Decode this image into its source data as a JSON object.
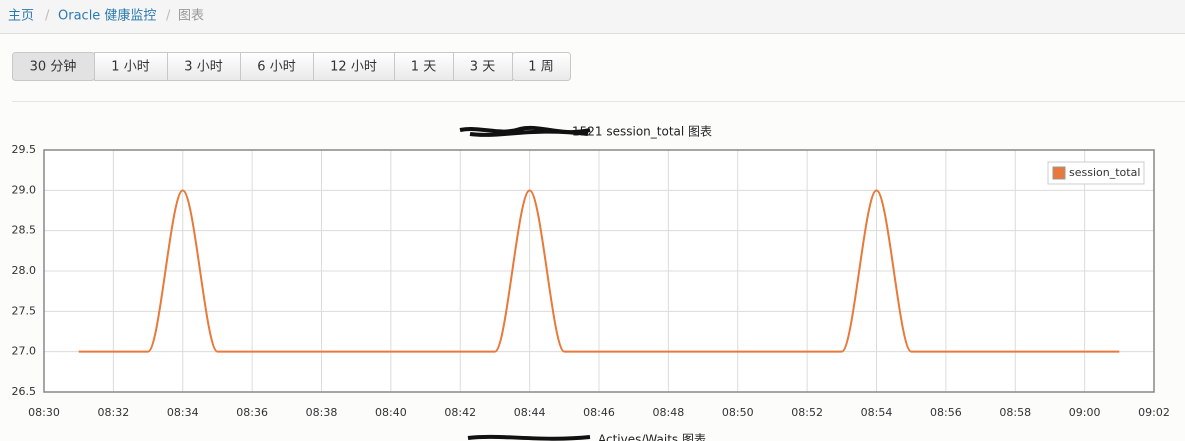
{
  "breadcrumb": {
    "items": [
      "主页",
      "Oracle 健康监控",
      "图表"
    ],
    "separator": "/"
  },
  "range_buttons": [
    "30 分钟",
    "1 小时",
    "3 小时",
    "6 小时",
    "12 小时",
    "1 天",
    "3 天",
    "1 周"
  ],
  "chart_data": {
    "type": "line",
    "title": "1521 session_total 图表",
    "x": [
      "08:31",
      "08:32",
      "08:33",
      "08:34",
      "08:35",
      "08:36",
      "08:37",
      "08:38",
      "08:39",
      "08:40",
      "08:41",
      "08:42",
      "08:43",
      "08:44",
      "08:45",
      "08:46",
      "08:47",
      "08:48",
      "08:49",
      "08:50",
      "08:51",
      "08:52",
      "08:53",
      "08:54",
      "08:55",
      "08:56",
      "08:57",
      "08:58",
      "08:59",
      "09:00",
      "09:01"
    ],
    "series": [
      {
        "name": "session_total",
        "color": "#e8793a",
        "values": [
          27,
          27,
          27,
          29,
          27,
          27,
          27,
          27,
          27,
          27,
          27,
          27,
          27,
          29,
          27,
          27,
          27,
          27,
          27,
          27,
          27,
          27,
          27,
          29,
          27,
          27,
          27,
          27,
          27,
          27,
          27
        ]
      }
    ],
    "xlim": [
      "08:30",
      "09:02"
    ],
    "xticks": [
      "08:30",
      "08:32",
      "08:34",
      "08:36",
      "08:38",
      "08:40",
      "08:42",
      "08:44",
      "08:46",
      "08:48",
      "08:50",
      "08:52",
      "08:54",
      "08:56",
      "08:58",
      "09:00",
      "09:02"
    ],
    "ylim": [
      26.5,
      29.5
    ],
    "yticks": [
      26.5,
      {
        "value": 27,
        "label": "27.0"
      },
      27.5,
      {
        "value": 28,
        "label": "28.0"
      },
      28.5,
      {
        "value": 29,
        "label": "29.0"
      },
      29.5
    ],
    "grid": true,
    "legend": "top-right"
  },
  "next_chart_title": "Actives/Waits 图表"
}
